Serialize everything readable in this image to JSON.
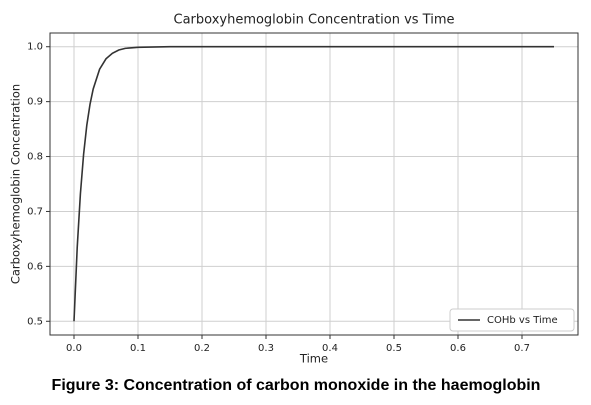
{
  "chart_data": {
    "type": "line",
    "title": "Carboxyhemoglobin Concentration vs Time",
    "x_label": "Time",
    "y_label": "Carboxyhemoglobin Concentration",
    "x": [
      0,
      0.005,
      0.01,
      0.015,
      0.02,
      0.025,
      0.03,
      0.04,
      0.05,
      0.06,
      0.07,
      0.08,
      0.1,
      0.15,
      0.75
    ],
    "series": [
      {
        "name": "COHb vs Time",
        "color": "#333333",
        "values": [
          0.5,
          0.634,
          0.732,
          0.804,
          0.857,
          0.895,
          0.923,
          0.959,
          0.978,
          0.988,
          0.994,
          0.997,
          0.999,
          1.0,
          1.0
        ]
      }
    ],
    "xlim": [
      -0.0375,
      0.7875
    ],
    "xticks": [
      {
        "value": 0,
        "label": "0.0"
      },
      0.1,
      0.2,
      0.3,
      0.4,
      0.5,
      0.6,
      0.7
    ],
    "ylim": [
      0.475,
      1.025
    ],
    "yticks": [
      0.5,
      0.6,
      0.7,
      0.8,
      0.9,
      {
        "value": 1,
        "label": "1.0"
      }
    ],
    "grid": true,
    "legend": "lower right"
  },
  "caption": "Figure 3: Concentration of carbon monoxide in the haemoglobin"
}
